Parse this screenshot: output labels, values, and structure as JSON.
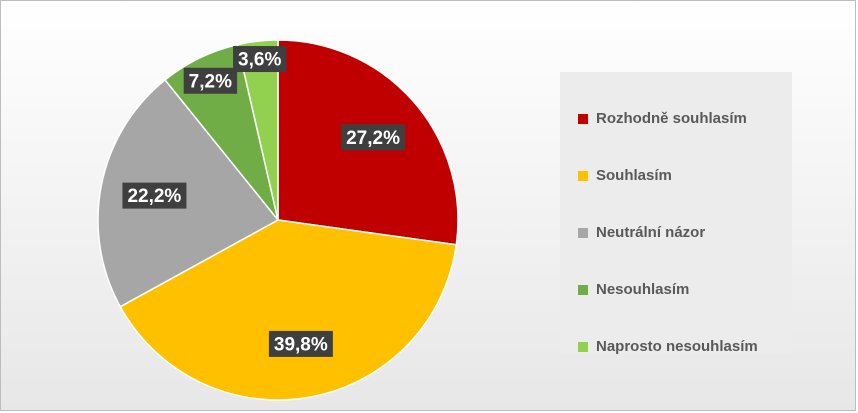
{
  "chart_data": {
    "type": "pie",
    "categories": [
      "Rozhodně souhlasím",
      "Souhlasím",
      "Neutrální názor",
      "Nesouhlasím",
      "Naprosto nesouhlasím"
    ],
    "values": [
      27.2,
      39.8,
      22.2,
      7.2,
      3.6
    ],
    "value_labels": [
      "27,2%",
      "39,8%",
      "22,2%",
      "7,2%",
      "3,6%"
    ],
    "colors": [
      "#C00000",
      "#FFC000",
      "#A6A6A6",
      "#70AD47",
      "#92D050"
    ],
    "legend_position": "right",
    "start_angle": "12 o'clock",
    "direction": "clockwise"
  },
  "legend": {
    "items": [
      {
        "label": "Rozhodně souhlasím",
        "color": "#C00000"
      },
      {
        "label": "Souhlasím",
        "color": "#FFC000"
      },
      {
        "label": "Neutrální názor",
        "color": "#A6A6A6"
      },
      {
        "label": "Nesouhlasím",
        "color": "#70AD47"
      },
      {
        "label": "Naprosto nesouhlasím",
        "color": "#92D050"
      }
    ]
  }
}
